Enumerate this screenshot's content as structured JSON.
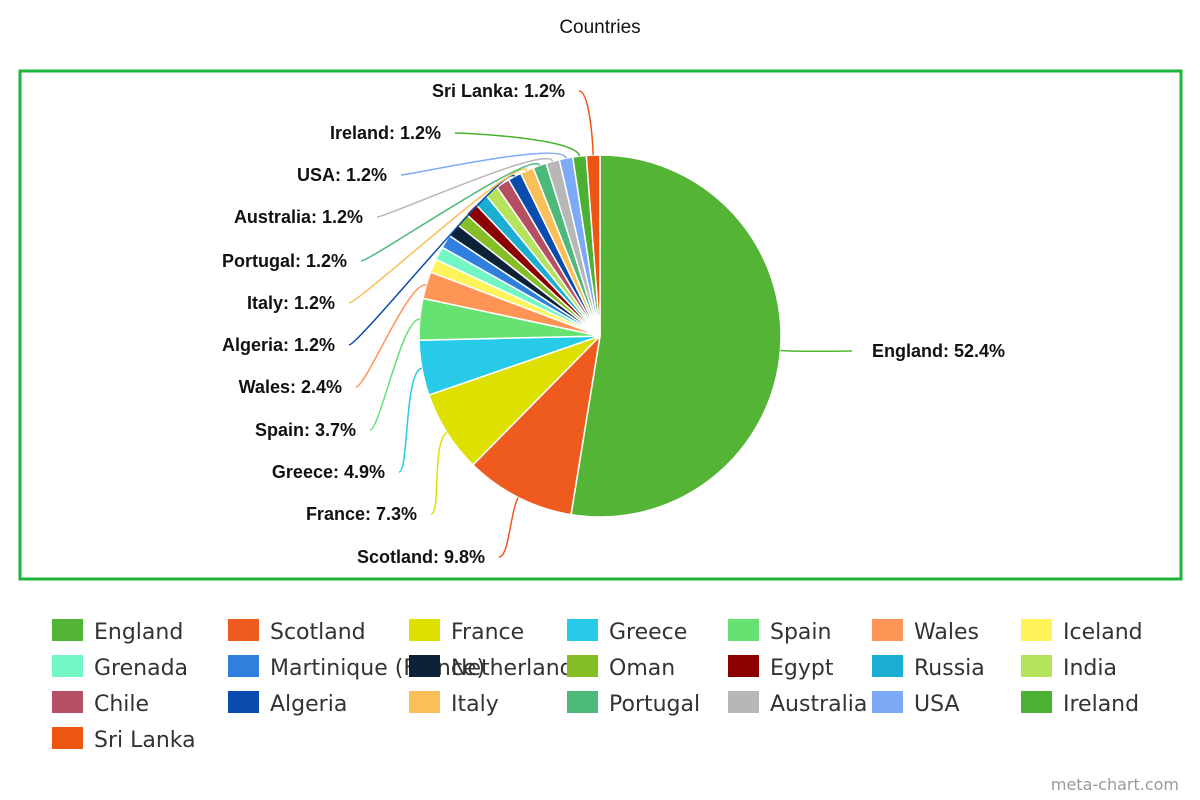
{
  "chart_data": {
    "type": "pie",
    "title": "Countries",
    "slices": [
      {
        "name": "England",
        "label": "England: 52.4%",
        "value": 52.4,
        "color": "#54b435"
      },
      {
        "name": "Scotland",
        "label": "Scotland: 9.8%",
        "value": 9.8,
        "color": "#ef5a1f"
      },
      {
        "name": "France",
        "label": "France: 7.3%",
        "value": 7.3,
        "color": "#dde000"
      },
      {
        "name": "Greece",
        "label": "Greece: 4.9%",
        "value": 4.9,
        "color": "#27cbe8"
      },
      {
        "name": "Spain",
        "label": "Spain: 3.7%",
        "value": 3.7,
        "color": "#65e272"
      },
      {
        "name": "Wales",
        "label": "Wales: 2.4%",
        "value": 2.4,
        "color": "#ff9457"
      },
      {
        "name": "Iceland",
        "label": "",
        "value": 1.2,
        "color": "#fff35a"
      },
      {
        "name": "Grenada",
        "label": "",
        "value": 1.2,
        "color": "#72f7c4"
      },
      {
        "name": "Martinique (France)",
        "label": "",
        "value": 1.2,
        "color": "#2f7fdd"
      },
      {
        "name": "Netherlands",
        "label": "",
        "value": 1.2,
        "color": "#0b2239"
      },
      {
        "name": "Oman",
        "label": "",
        "value": 1.2,
        "color": "#86be25"
      },
      {
        "name": "Egypt",
        "label": "",
        "value": 1.2,
        "color": "#8b0000"
      },
      {
        "name": "Russia",
        "label": "",
        "value": 1.2,
        "color": "#1aaed0"
      },
      {
        "name": "India",
        "label": "",
        "value": 1.2,
        "color": "#b5e35e"
      },
      {
        "name": "Chile",
        "label": "",
        "value": 1.2,
        "color": "#b54f63"
      },
      {
        "name": "Algeria",
        "label": "Algeria: 1.2%",
        "value": 1.2,
        "color": "#0a4cad"
      },
      {
        "name": "Italy",
        "label": "Italy: 1.2%",
        "value": 1.2,
        "color": "#fbbf5a"
      },
      {
        "name": "Portugal",
        "label": "Portugal: 1.2%",
        "value": 1.2,
        "color": "#4db979"
      },
      {
        "name": "Australia",
        "label": "Australia: 1.2%",
        "value": 1.2,
        "color": "#b7b7b7"
      },
      {
        "name": "USA",
        "label": "USA: 1.2%",
        "value": 1.2,
        "color": "#7daaf7"
      },
      {
        "name": "Ireland",
        "label": "Ireland: 1.2%",
        "value": 1.2,
        "color": "#4cb132"
      },
      {
        "name": "Sri Lanka",
        "label": "Sri Lanka: 1.2%",
        "value": 1.2,
        "color": "#ed5512"
      }
    ],
    "legend_position": "bottom",
    "border_color": "#1eb53a"
  },
  "credit": "meta-chart.com"
}
